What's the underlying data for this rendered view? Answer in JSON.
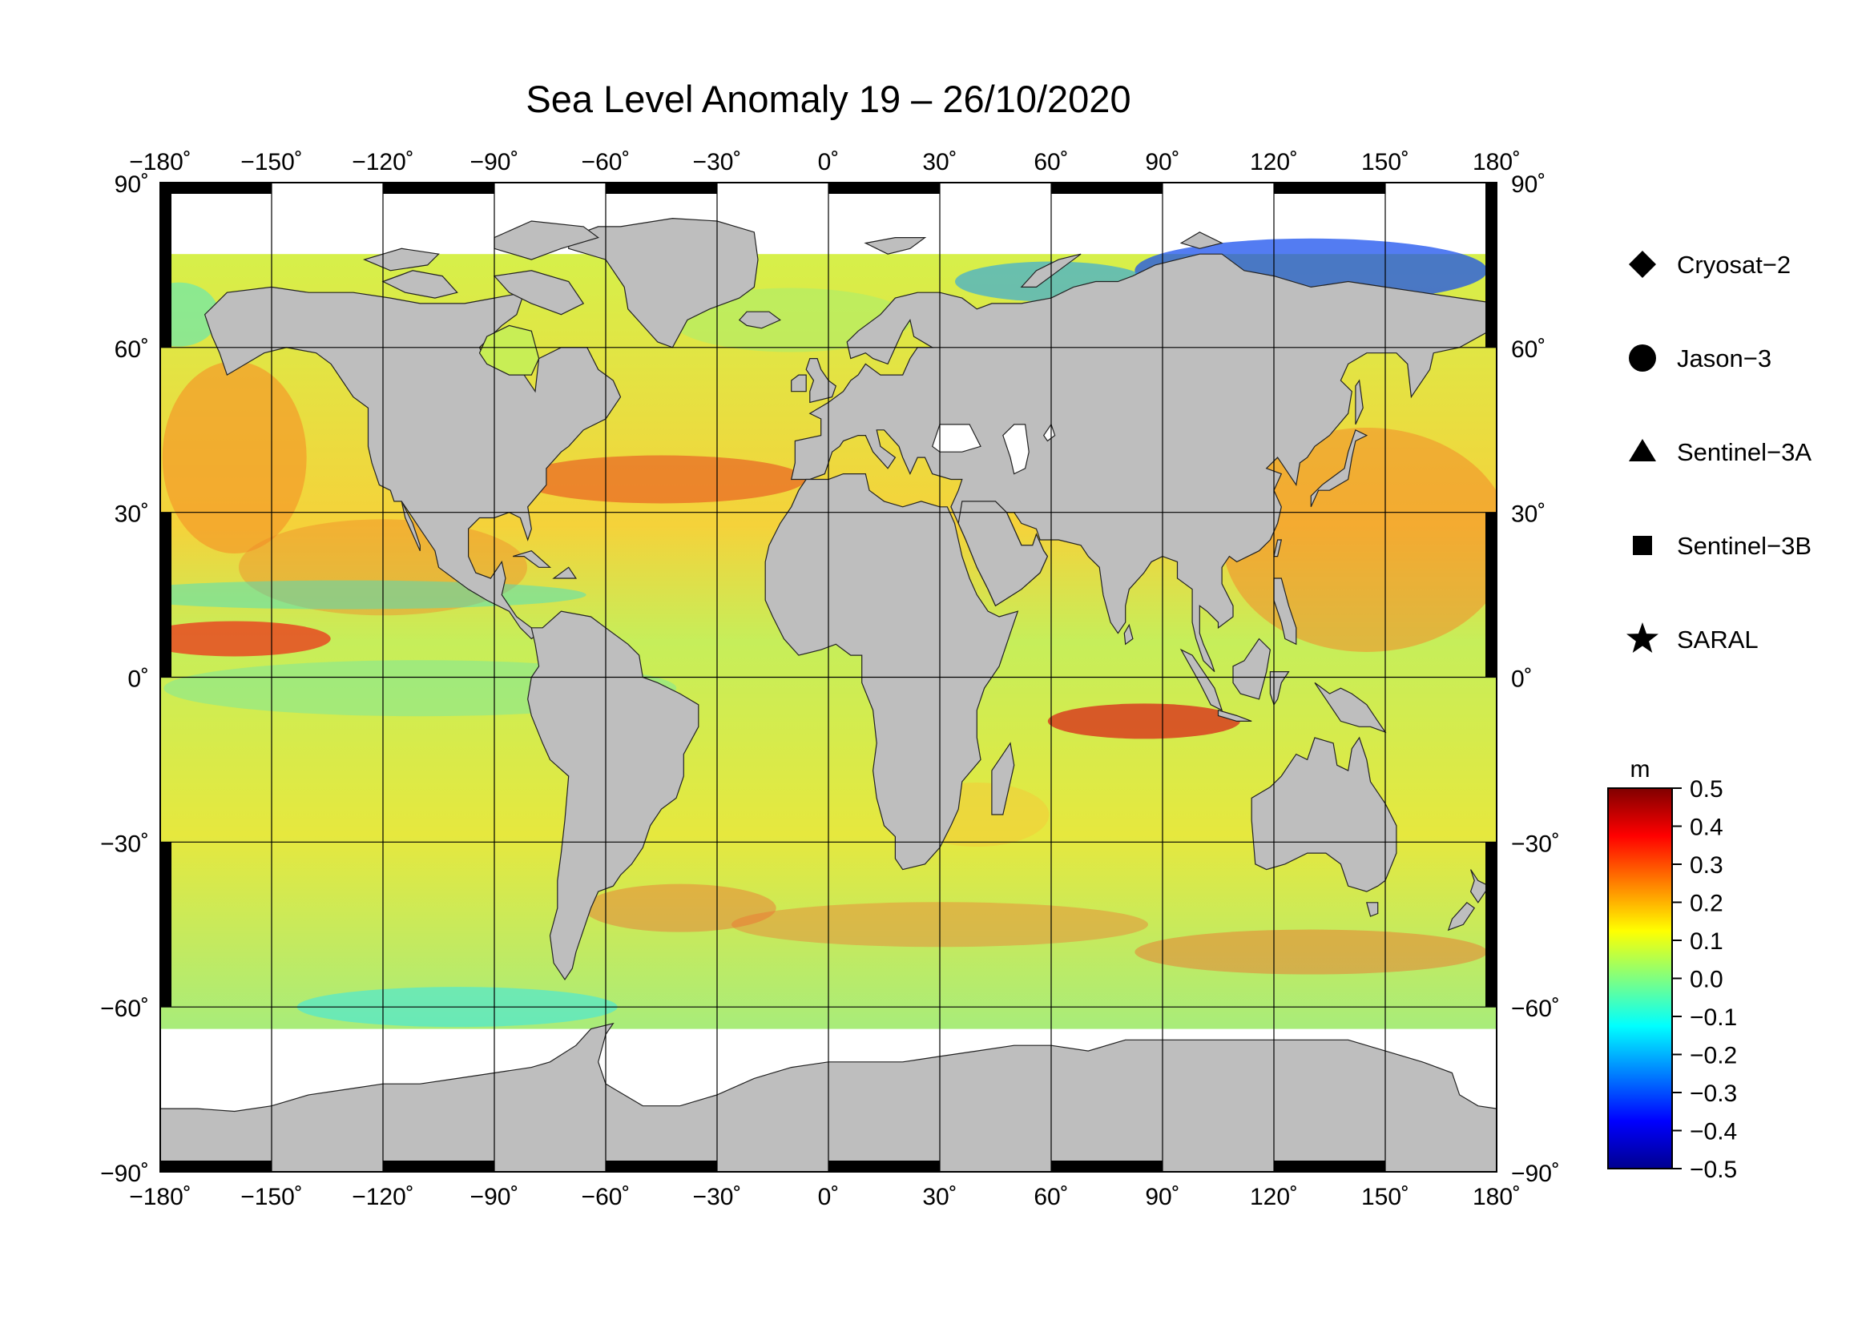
{
  "title": "Sea Level Anomaly 19 – 26/10/2020",
  "map": {
    "projection": "equirectangular",
    "lon_range": [
      -180,
      180
    ],
    "lat_range": [
      -90,
      90
    ],
    "lon_ticks": [
      {
        "value": -180,
        "label": "−180˚"
      },
      {
        "value": -150,
        "label": "−150˚"
      },
      {
        "value": -120,
        "label": "−120˚"
      },
      {
        "value": -90,
        "label": "−90˚"
      },
      {
        "value": -60,
        "label": "−60˚"
      },
      {
        "value": -30,
        "label": "−30˚"
      },
      {
        "value": 0,
        "label": "0˚"
      },
      {
        "value": 30,
        "label": "30˚"
      },
      {
        "value": 60,
        "label": "60˚"
      },
      {
        "value": 90,
        "label": "90˚"
      },
      {
        "value": 120,
        "label": "120˚"
      },
      {
        "value": 150,
        "label": "150˚"
      },
      {
        "value": 180,
        "label": "180˚"
      }
    ],
    "lat_ticks": [
      {
        "value": 90,
        "label": "90˚"
      },
      {
        "value": 60,
        "label": "60˚"
      },
      {
        "value": 30,
        "label": "30˚"
      },
      {
        "value": 0,
        "label": "0˚"
      },
      {
        "value": -30,
        "label": "−30˚"
      },
      {
        "value": -60,
        "label": "−60˚"
      },
      {
        "value": -90,
        "label": "−90˚"
      }
    ],
    "land_color": "#bebebe",
    "ice_color": "#ffffff",
    "frame_color": "#000000"
  },
  "legend": {
    "items": [
      {
        "label": "Cryosat−2",
        "marker": "diamond"
      },
      {
        "label": "Jason−3",
        "marker": "circle"
      },
      {
        "label": "Sentinel−3A",
        "marker": "triangle"
      },
      {
        "label": "Sentinel−3B",
        "marker": "square"
      },
      {
        "label": "SARAL",
        "marker": "star"
      }
    ]
  },
  "colorbar": {
    "unit": "m",
    "range": [
      -0.5,
      0.5
    ],
    "tick_labels": [
      "0.5",
      "0.4",
      "0.3",
      "0.2",
      "0.1",
      "0.0",
      "−0.1",
      "−0.2",
      "−0.3",
      "−0.4",
      "−0.5"
    ],
    "colors": [
      "#00008f",
      "#0000ff",
      "#0080ff",
      "#00ffff",
      "#80ff80",
      "#ffff00",
      "#ff8000",
      "#ff0000",
      "#800000"
    ]
  }
}
